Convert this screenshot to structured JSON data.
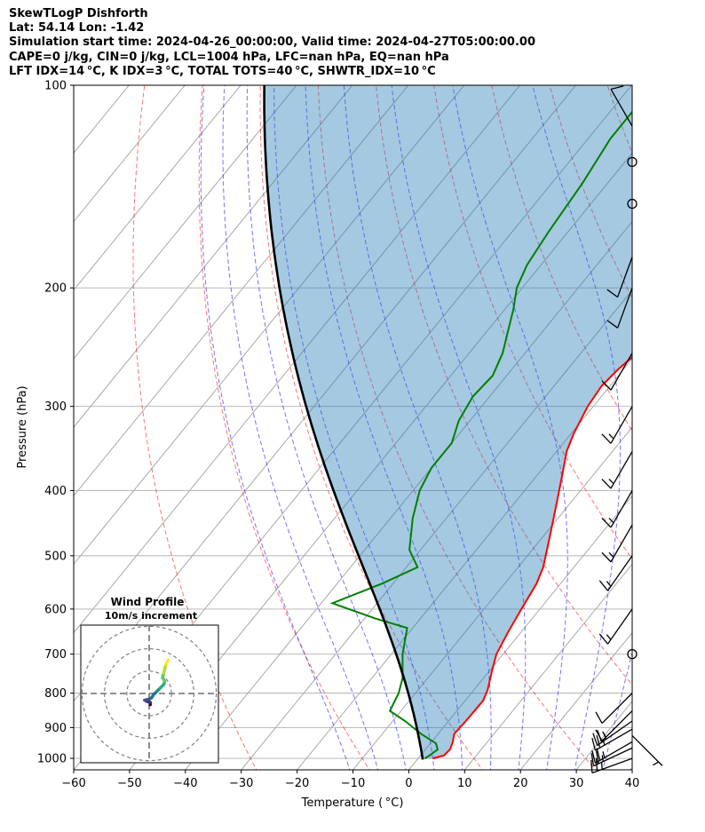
{
  "header": {
    "lines": [
      "SkewTLogP Dishforth",
      "Lat: 54.14   Lon: -1.42",
      "Simulation start time: 2024-04-26_00:00:00, Valid time: 2024-04-27T05:00:00.00",
      "CAPE=0 j/kg, CIN=0 j/kg, LCL=1004 hPa, LFC=nan hPa, EQ=nan hPa",
      "LFT IDX=14 °C, K IDX=3 °C, TOTAL TOTS=40 °C, SHWTR_IDX=10 °C"
    ]
  },
  "colors": {
    "temperature": "#ff0000",
    "dewpoint": "#008000",
    "parcel": "#000000",
    "cape_fill": "#1f77b4",
    "dry_adiabat": "#ff0000",
    "moist_adiabat": "#0000ff",
    "mixing_ratio": "#0000ff",
    "isotherm": "#808080"
  },
  "chart_data": {
    "type": "skewt",
    "xlabel": "Temperature ( °C)",
    "ylabel": "Pressure (hPa)",
    "xlim": [
      -60,
      40
    ],
    "ylim": [
      1040,
      100
    ],
    "x_ticks": [
      -60,
      -50,
      -40,
      -30,
      -20,
      -10,
      0,
      10,
      20,
      30,
      40
    ],
    "y_ticks": [
      100,
      200,
      300,
      400,
      500,
      600,
      700,
      800,
      900,
      1000
    ],
    "grid": true,
    "temperature": [
      {
        "p": 1000,
        "t": 2.6
      },
      {
        "p": 990,
        "t": 4.2
      },
      {
        "p": 970,
        "t": 4.4
      },
      {
        "p": 945,
        "t": 3.8
      },
      {
        "p": 920,
        "t": 2.9
      },
      {
        "p": 880,
        "t": 3.1
      },
      {
        "p": 820,
        "t": 3.2
      },
      {
        "p": 790,
        "t": 2.4
      },
      {
        "p": 740,
        "t": 0.4
      },
      {
        "p": 700,
        "t": -1.2
      },
      {
        "p": 650,
        "t": -2.3
      },
      {
        "p": 600,
        "t": -3.3
      },
      {
        "p": 550,
        "t": -4.3
      },
      {
        "p": 520,
        "t": -5.5
      },
      {
        "p": 480,
        "t": -8.0
      },
      {
        "p": 430,
        "t": -11.5
      },
      {
        "p": 380,
        "t": -15.5
      },
      {
        "p": 350,
        "t": -18.2
      },
      {
        "p": 330,
        "t": -19.5
      },
      {
        "p": 300,
        "t": -21.0
      },
      {
        "p": 280,
        "t": -21.5
      },
      {
        "p": 265,
        "t": -21.0
      },
      {
        "p": 250,
        "t": -20.0
      },
      {
        "p": 232,
        "t": -18.0
      },
      {
        "p": 215,
        "t": -17.0
      },
      {
        "p": 200,
        "t": -17.5
      },
      {
        "p": 185,
        "t": -18.0
      },
      {
        "p": 170,
        "t": -21.0
      },
      {
        "p": 150,
        "t": -24.0
      },
      {
        "p": 130,
        "t": -29.0
      },
      {
        "p": 115,
        "t": -34.0
      },
      {
        "p": 100,
        "t": -40.0
      }
    ],
    "dewpoint": [
      {
        "p": 1000,
        "t": 1.2
      },
      {
        "p": 990,
        "t": 1.6
      },
      {
        "p": 970,
        "t": 2.2
      },
      {
        "p": 950,
        "t": 1.0
      },
      {
        "p": 920,
        "t": -3.0
      },
      {
        "p": 880,
        "t": -7.8
      },
      {
        "p": 850,
        "t": -12.0
      },
      {
        "p": 800,
        "t": -13.0
      },
      {
        "p": 760,
        "t": -14.5
      },
      {
        "p": 700,
        "t": -18.0
      },
      {
        "p": 640,
        "t": -21.0
      },
      {
        "p": 620,
        "t": -28.0
      },
      {
        "p": 588,
        "t": -38.0
      },
      {
        "p": 550,
        "t": -32.0
      },
      {
        "p": 520,
        "t": -28.0
      },
      {
        "p": 490,
        "t": -32.0
      },
      {
        "p": 440,
        "t": -36.0
      },
      {
        "p": 400,
        "t": -38.8
      },
      {
        "p": 370,
        "t": -40.0
      },
      {
        "p": 340,
        "t": -40.0
      },
      {
        "p": 315,
        "t": -42.0
      },
      {
        "p": 290,
        "t": -43.0
      },
      {
        "p": 270,
        "t": -42.5
      },
      {
        "p": 250,
        "t": -44.0
      },
      {
        "p": 230,
        "t": -46.5
      },
      {
        "p": 215,
        "t": -48.5
      },
      {
        "p": 200,
        "t": -51.0
      },
      {
        "p": 185,
        "t": -52.5
      },
      {
        "p": 165,
        "t": -53.5
      },
      {
        "p": 140,
        "t": -54.5
      },
      {
        "p": 120,
        "t": -56.0
      },
      {
        "p": 100,
        "t": -56.0
      }
    ],
    "parcel": {
      "surface_p": 1004,
      "surface_t": 1.0
    },
    "wind_barbs": [
      {
        "p": 1000,
        "speed": 25,
        "dir": 250
      },
      {
        "p": 965,
        "speed": 25,
        "dir": 245
      },
      {
        "p": 945,
        "speed": 25,
        "dir": 240
      },
      {
        "p": 925,
        "speed": 5,
        "dir": 135
      },
      {
        "p": 905,
        "speed": 25,
        "dir": 240
      },
      {
        "p": 880,
        "speed": 25,
        "dir": 235
      },
      {
        "p": 850,
        "speed": 15,
        "dir": 225
      },
      {
        "p": 800,
        "speed": 10,
        "dir": 225
      },
      {
        "p": 700,
        "speed": 0,
        "dir": 0
      },
      {
        "p": 600,
        "speed": 15,
        "dir": 215
      },
      {
        "p": 500,
        "speed": 15,
        "dir": 215
      },
      {
        "p": 450,
        "speed": 15,
        "dir": 210
      },
      {
        "p": 400,
        "speed": 15,
        "dir": 210
      },
      {
        "p": 350,
        "speed": 15,
        "dir": 210
      },
      {
        "p": 300,
        "speed": 15,
        "dir": 210
      },
      {
        "p": 250,
        "speed": 10,
        "dir": 210
      },
      {
        "p": 200,
        "speed": 10,
        "dir": 200
      },
      {
        "p": 180,
        "speed": 10,
        "dir": 200
      },
      {
        "p": 150,
        "speed": 0,
        "dir": 0
      },
      {
        "p": 130,
        "speed": 0,
        "dir": 0
      },
      {
        "p": 115,
        "speed": 10,
        "dir": 330
      }
    ],
    "hodograph": {
      "title": "Wind Profile",
      "subtitle": "10m/s increment",
      "rings_ms": [
        10,
        20,
        30
      ],
      "points": [
        {
          "u": 0.5,
          "v": -5.0
        },
        {
          "u": 0.5,
          "v": -4.0
        },
        {
          "u": -1.0,
          "v": -3.5
        },
        {
          "u": -2.0,
          "v": -3.0
        },
        {
          "u": 0.0,
          "v": -2.5
        },
        {
          "u": 1.0,
          "v": -2.0
        },
        {
          "u": 2.0,
          "v": -0.5
        },
        {
          "u": 3.5,
          "v": 1.0
        },
        {
          "u": 5.0,
          "v": 2.5
        },
        {
          "u": 6.5,
          "v": 4.0
        },
        {
          "u": 7.0,
          "v": 5.5
        },
        {
          "u": 6.0,
          "v": 7.0
        },
        {
          "u": 6.5,
          "v": 9.0
        },
        {
          "u": 7.0,
          "v": 11.0
        },
        {
          "u": 7.5,
          "v": 13.0
        },
        {
          "u": 8.5,
          "v": 15.0
        }
      ]
    }
  }
}
